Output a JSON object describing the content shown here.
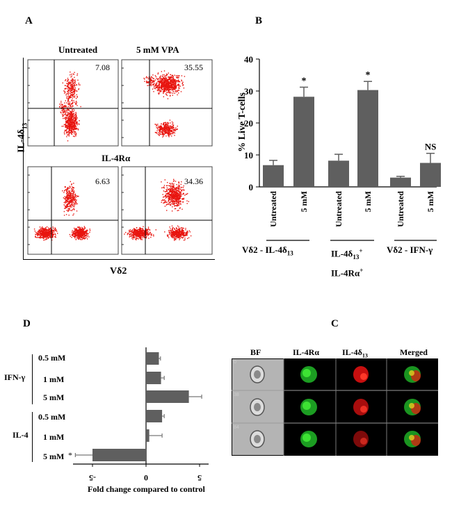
{
  "panelA": {
    "letter": "A",
    "top_labels": [
      "Untreated",
      "5 mM VPA"
    ],
    "mid_label": "IL-4Rα",
    "ylabel": "IL-4δ",
    "ylabel_sub": "13",
    "xlabel": "Vδ2",
    "quadrant_values": [
      "7.08",
      "35.55",
      "6.63",
      "34.36"
    ]
  },
  "panelB": {
    "letter": "B",
    "groups": [
      {
        "label": "Vδ2 - IL-4δ",
        "sub": "13",
        "sup": ""
      },
      {
        "label": "IL-4δ",
        "sub": "13",
        "sup": "+",
        "line2": "IL-4Rα",
        "line2_sup": "+"
      },
      {
        "label": "Vδ2 - IFN-γ",
        "sub": "",
        "sup": ""
      }
    ],
    "sig_marks": [
      "*",
      "*",
      "NS"
    ]
  },
  "panelC": {
    "letter": "C",
    "headers": [
      "BF",
      "IL-4Rα",
      "IL-4δ",
      "Merged"
    ],
    "header_sub": "13",
    "row_ids": [
      "0",
      "38",
      "84"
    ]
  },
  "panelD": {
    "letter": "D",
    "groups": [
      "IFN-γ",
      "IL-4"
    ],
    "doses": [
      "0.5 mM",
      "1 mM",
      "5 mM",
      "0.5 mM",
      "1 mM",
      "5 mM"
    ],
    "sig_mark": "*"
  },
  "chart_data": [
    {
      "type": "bar",
      "panel": "B",
      "categories": [
        "Untreated",
        "5 mM",
        "Untreated",
        "5 mM",
        "Untreated",
        "5 mM"
      ],
      "values": [
        6.8,
        28.2,
        8.2,
        30.3,
        2.9,
        7.5
      ],
      "errors": [
        1.5,
        3.0,
        2.0,
        2.7,
        0.4,
        3.0
      ],
      "ylabel": "% Live T-cells",
      "ylim": [
        0,
        40
      ],
      "yticks": [
        0,
        10,
        20,
        30,
        40
      ],
      "xlabel": "",
      "color": "#5f5f5f"
    },
    {
      "type": "bar",
      "panel": "D",
      "orientation": "horizontal",
      "categories": [
        "0.5 mM",
        "1 mM",
        "5 mM",
        "0.5 mM",
        "1 mM",
        "5 mM"
      ],
      "values": [
        1.2,
        1.4,
        4.0,
        1.5,
        0.3,
        -5.0
      ],
      "errors": [
        0.15,
        0.3,
        1.2,
        0.2,
        1.2,
        1.6
      ],
      "xlabel": "Fold change compared to control",
      "xticks": [
        "-5",
        "0",
        "5"
      ],
      "xlim": [
        -7,
        6
      ],
      "color": "#5f5f5f"
    }
  ]
}
